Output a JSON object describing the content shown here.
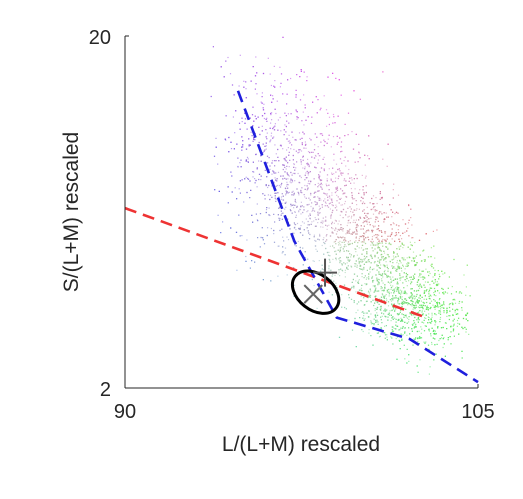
{
  "chart_data": {
    "type": "scatter",
    "xlabel": "L/(L+M) rescaled",
    "ylabel": "S/(L+M) rescaled",
    "xlim": [
      90,
      105
    ],
    "ylim": [
      2,
      20
    ],
    "xticks": [
      "90",
      "105"
    ],
    "yticks": [
      "2",
      "20"
    ],
    "grid": false,
    "cloud": {
      "description_hint": "dense hue-colored point cloud",
      "center": [
        98.3,
        10.2
      ],
      "upper_lobe_center": [
        95.5,
        14.8
      ],
      "lower_lobe_center": [
        99.5,
        6.8
      ],
      "x_extent": [
        93.7,
        104.6
      ],
      "y_extent": [
        2.3,
        20
      ]
    },
    "lines": [
      {
        "style": "dashed",
        "color": "#ee3333",
        "points": [
          [
            90,
            11.2
          ],
          [
            102.8,
            5.6
          ]
        ]
      },
      {
        "style": "dashed",
        "color": "#1f1fdd",
        "points": [
          [
            94.8,
            17.2
          ],
          [
            97.2,
            9.5
          ],
          [
            99.0,
            5.6
          ],
          [
            102.1,
            4.5
          ],
          [
            105,
            2.3
          ]
        ]
      }
    ],
    "ellipse": {
      "color": "#000000",
      "center": [
        98.1,
        6.9
      ],
      "rx": 1.0,
      "ry": 0.65
    },
    "crosses": [
      {
        "color": "#555555",
        "at": [
          98.5,
          7.9
        ]
      },
      {
        "color": "#666666",
        "at": [
          98.0,
          6.8
        ]
      }
    ]
  }
}
